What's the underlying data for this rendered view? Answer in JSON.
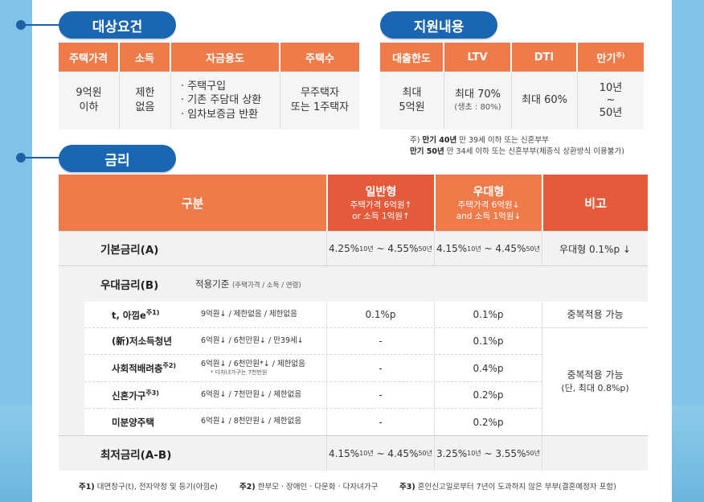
{
  "sections": {
    "eligibility": "대상요건",
    "support": "지원내용",
    "rate": "금리"
  },
  "eligibility": {
    "headers": [
      "주택가격",
      "소득",
      "자금용도",
      "주택수"
    ],
    "price": "9억원\n이하",
    "income": "제한\n없음",
    "uses": [
      "· 주택구입",
      "· 기존 주담대 상환",
      "· 임차보증금 반환"
    ],
    "houses": "무주택자\n또는 1주택자"
  },
  "support": {
    "headers": [
      "대출한도",
      "LTV",
      "DTI",
      "만기"
    ],
    "maturity_sup": "주)",
    "limit": "최대\n5억원",
    "ltv": "최대 70%",
    "ltv_sub": "(생초 : 80%)",
    "dti": "최대 60%",
    "term": "10년\n~\n50년"
  },
  "support_note": {
    "line1_prefix": "주) ",
    "line1_bold": "만기 40년",
    "line1_rest": " 만 39세 이하 또는 신혼부부",
    "line2_bold": "만기 50년",
    "line2_rest": " 만 34세 이하 또는 신혼부부(체증식 상환방식 이용불가)"
  },
  "rate_table": {
    "col_category": "구분",
    "col_general": "일반형",
    "col_general_sub1": "주택가격 6억원↑",
    "col_general_sub2": "or 소득 1억원↑",
    "col_preferred": "우대형",
    "col_preferred_sub1": "주택가격 6억원↓",
    "col_preferred_sub2": "and 소득 1억원↓",
    "col_remark": "비고",
    "base": {
      "label": "기본금리(A)",
      "general_from": "4.25%",
      "general_to": "4.55%",
      "preferred_from": "4.15%",
      "preferred_to": "4.45%",
      "term10": "10년",
      "term50": "50년",
      "remark": "우대형 0.1%p ↓"
    },
    "preference": {
      "label": "우대금리(B)",
      "criteria": "적용기준",
      "criteria_sub": "(주택가격 / 소득 / 연령)",
      "rows": [
        {
          "name": "t, 아낌e",
          "sup": "주1)",
          "criteria": "9억원↓ / 제한없음 / 제한없음",
          "criteria_note": "",
          "general": "0.1%p",
          "preferred": "0.1%p"
        },
        {
          "name": "(新)저소득청년",
          "sup": "",
          "criteria": "6억원↓ / 6천만원↓ / 만39세↓",
          "criteria_note": "",
          "general": "-",
          "preferred": "0.1%p"
        },
        {
          "name": "사회적배려층",
          "sup": "주2)",
          "criteria": "6억원↓ / 6천만원*↓ / 제한없음",
          "criteria_note": "* 다자녀가구는 7천만원",
          "general": "-",
          "preferred": "0.4%p"
        },
        {
          "name": "신혼가구",
          "sup": "주3)",
          "criteria": "6억원↓ / 7천만원↓ / 제한없음",
          "criteria_note": "",
          "general": "-",
          "preferred": "0.2%p"
        },
        {
          "name": "미분양주택",
          "sup": "",
          "criteria": "6억원↓ / 8천만원↓ / 제한없음",
          "criteria_note": "",
          "general": "-",
          "preferred": "0.2%p"
        }
      ],
      "remark1": "중복적용 가능",
      "remark2_line1": "중복적용 가능",
      "remark2_line2": "(단, 최대 0.8%p)"
    },
    "minimum": {
      "label": "최저금리(A-B)",
      "general_from": "4.15%",
      "general_to": "4.45%",
      "preferred_from": "3.25%",
      "preferred_to": "3.55%",
      "term10": "10년",
      "term50": "50년"
    }
  },
  "footnotes": {
    "n1_label": "주1)",
    "n1_text": "대면창구(t), 전자약정 및 등기(아낌e)",
    "n2_label": "주2)",
    "n2_text": "한부모 · 장애인 · 다문화 · 다자녀가구",
    "n3_label": "주3)",
    "n3_text": "혼인신고일로부터 7년이 도과하지 않은 부부(결혼예정자 포함)"
  },
  "colors": {
    "header_orange": "#f07b4a",
    "header_red": "#e45a3a",
    "pill_blue": "#1b66b3",
    "background": "#7fc4e6"
  }
}
